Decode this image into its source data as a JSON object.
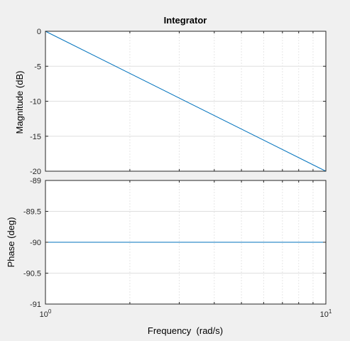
{
  "chart_data": [
    {
      "type": "line",
      "title": "Integrator",
      "xlabel": "",
      "ylabel": "Magnitude (dB)",
      "xscale": "log",
      "xlim": [
        1,
        10
      ],
      "ylim": [
        -20,
        0
      ],
      "yticks": [
        0,
        -5,
        -10,
        -15,
        -20
      ],
      "ytick_labels": [
        "0",
        "-5",
        "-10",
        "-15",
        "-20"
      ],
      "grid": true,
      "series": [
        {
          "color": "#0072bd",
          "x": [
            1,
            10
          ],
          "y": [
            0,
            -20
          ]
        }
      ]
    },
    {
      "type": "line",
      "title": "",
      "xlabel": "Frequency  (rad/s)",
      "ylabel": "Phase (deg)",
      "xscale": "log",
      "xlim": [
        1,
        10
      ],
      "ylim": [
        -91,
        -89
      ],
      "yticks": [
        -89,
        -89.5,
        -90,
        -90.5,
        -91
      ],
      "ytick_labels": [
        "-89",
        "-89.5",
        "-90",
        "-90.5",
        "-91"
      ],
      "xticks": [
        1,
        10
      ],
      "xtick_labels": [
        {
          "base": "10",
          "exp": "0"
        },
        {
          "base": "10",
          "exp": "1"
        }
      ],
      "grid": true,
      "series": [
        {
          "color": "#0072bd",
          "x": [
            1,
            10
          ],
          "y": [
            -90,
            -90
          ]
        }
      ]
    }
  ]
}
